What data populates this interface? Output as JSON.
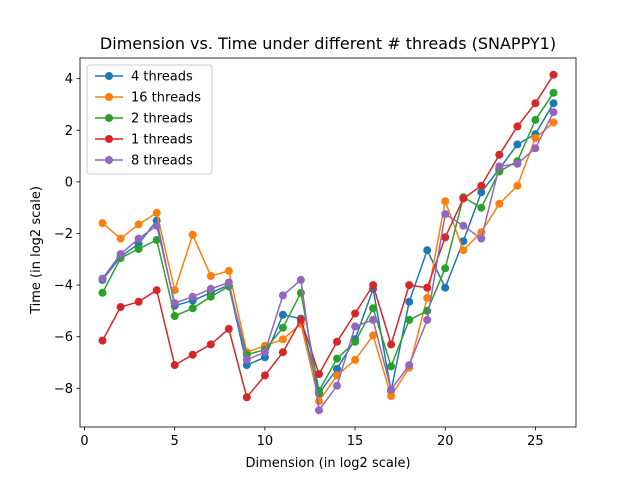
{
  "chart_data": {
    "type": "line",
    "title": "Dimension vs. Time under different # threads (SNAPPY1)",
    "xlabel": "Dimension (in log2 scale)",
    "ylabel": "Time (in log2 scale)",
    "xlim": [
      -0.25,
      27.25
    ],
    "ylim": [
      -9.5,
      4.8
    ],
    "xticks": [
      0,
      5,
      10,
      15,
      20,
      25
    ],
    "yticks": [
      -8,
      -6,
      -4,
      -2,
      0,
      2,
      4
    ],
    "grid": false,
    "legend_position": "top-left",
    "x": [
      1,
      2,
      3,
      4,
      5,
      6,
      7,
      8,
      9,
      10,
      11,
      12,
      13,
      14,
      15,
      16,
      17,
      18,
      19,
      20,
      21,
      22,
      23,
      24,
      25,
      26
    ],
    "series": [
      {
        "name": "4 threads",
        "color": "#1f77b4",
        "values": [
          -3.8,
          -2.9,
          -2.4,
          -1.5,
          -4.8,
          -4.6,
          -4.3,
          -4.0,
          -7.1,
          -6.8,
          -5.15,
          -5.3,
          -8.2,
          -7.25,
          -6.1,
          -4.15,
          -8.1,
          -4.65,
          -2.65,
          -4.1,
          -2.3,
          -0.4,
          0.5,
          1.45,
          1.85,
          3.05
        ]
      },
      {
        "name": "16 threads",
        "color": "#ff7f0e",
        "values": [
          -1.6,
          -2.2,
          -1.65,
          -1.2,
          -4.2,
          -2.05,
          -3.65,
          -3.45,
          -6.6,
          -6.35,
          -6.1,
          -5.5,
          -8.5,
          -7.5,
          -6.9,
          -5.95,
          -8.3,
          -7.2,
          -4.5,
          -0.75,
          -2.65,
          -1.95,
          -0.85,
          -0.15,
          1.7,
          2.3
        ]
      },
      {
        "name": "2 threads",
        "color": "#2ca02c",
        "values": [
          -4.3,
          -2.95,
          -2.6,
          -2.25,
          -5.2,
          -4.9,
          -4.45,
          -4.05,
          -6.7,
          -6.5,
          -5.65,
          -4.3,
          -8.1,
          -6.85,
          -6.2,
          -4.9,
          -7.15,
          -5.35,
          -5.0,
          -3.35,
          -0.6,
          -1.0,
          0.4,
          0.8,
          2.4,
          3.45
        ]
      },
      {
        "name": "1 threads",
        "color": "#d62728",
        "values": [
          -6.15,
          -4.85,
          -4.65,
          -4.2,
          -7.1,
          -6.7,
          -6.3,
          -5.7,
          -8.35,
          -7.5,
          -6.6,
          -5.35,
          -7.45,
          -6.2,
          -5.1,
          -4.0,
          -6.3,
          -4.0,
          -4.1,
          -2.15,
          -0.65,
          -0.15,
          1.05,
          2.15,
          3.05,
          4.15
        ]
      },
      {
        "name": "8 threads",
        "color": "#9467bd",
        "values": [
          -3.75,
          -2.8,
          -2.2,
          -1.7,
          -4.7,
          -4.45,
          -4.15,
          -3.9,
          -6.9,
          -6.6,
          -4.4,
          -3.8,
          -8.85,
          -7.9,
          -5.6,
          -5.35,
          -8.05,
          -7.1,
          -5.35,
          -1.25,
          -1.7,
          -2.2,
          0.6,
          0.7,
          1.3,
          2.7
        ]
      }
    ]
  }
}
